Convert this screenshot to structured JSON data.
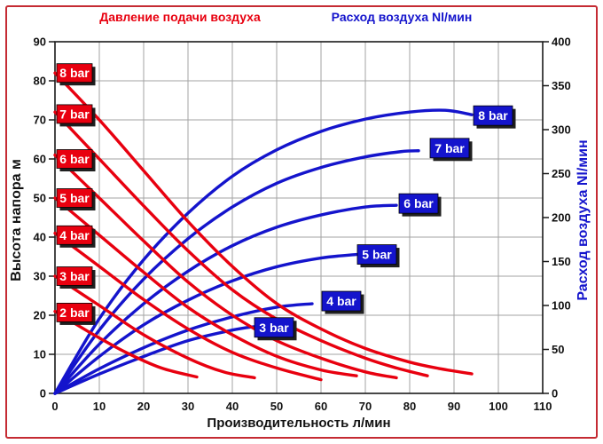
{
  "window": {
    "background": "#ffffff",
    "border_color": "#c52b33"
  },
  "chart_data": {
    "type": "line",
    "legend_top": {
      "left_label": "Давление подачи воздуха",
      "right_label": "Расход воздуха Nl/мин"
    },
    "xlabel": "Производительность л/мин",
    "ylabel_left": "Высота напора м",
    "ylabel_right": "Расход воздуха Nl/мин",
    "xlim": [
      0,
      110
    ],
    "ylim_left": [
      0,
      90
    ],
    "ylim_right": [
      0,
      400
    ],
    "x_ticks": [
      0,
      10,
      20,
      30,
      40,
      50,
      60,
      70,
      80,
      90,
      100,
      110
    ],
    "y_ticks_left": [
      0,
      10,
      20,
      30,
      40,
      50,
      60,
      70,
      80,
      90
    ],
    "y_ticks_right": [
      0,
      50,
      100,
      150,
      200,
      250,
      300,
      350,
      400
    ],
    "grid": {
      "vertical_every": 10,
      "horizontal_every_left": 10,
      "color": "#a3a3a3"
    },
    "colors": {
      "red": "#e8000f",
      "blue": "#1414cc",
      "axis": "#1a1a1a",
      "tick_text": "#111111",
      "label_text": "#ffffff",
      "shadow": "#1f1f1f"
    },
    "series": [
      {
        "id": "red-8bar",
        "label": "8 bar",
        "group": "pressure",
        "color": "red",
        "axis": "left",
        "label_pos": {
          "side": "start",
          "y": 82
        },
        "points": [
          [
            0,
            82
          ],
          [
            10,
            70
          ],
          [
            20,
            57
          ],
          [
            30,
            44
          ],
          [
            40,
            32.5
          ],
          [
            50,
            23
          ],
          [
            60,
            16.5
          ],
          [
            70,
            11.5
          ],
          [
            80,
            8
          ],
          [
            87,
            6.3
          ],
          [
            94,
            5
          ]
        ]
      },
      {
        "id": "red-7bar",
        "label": "7 bar",
        "group": "pressure",
        "color": "red",
        "axis": "left",
        "label_pos": {
          "side": "start",
          "y": 71.5
        },
        "points": [
          [
            0,
            72
          ],
          [
            10,
            60
          ],
          [
            20,
            48
          ],
          [
            30,
            36.5
          ],
          [
            40,
            26.5
          ],
          [
            50,
            19
          ],
          [
            60,
            13.5
          ],
          [
            70,
            9
          ],
          [
            77,
            6.5
          ],
          [
            84,
            4.5
          ]
        ]
      },
      {
        "id": "red-6bar",
        "label": "6 bar",
        "group": "pressure",
        "color": "red",
        "axis": "left",
        "label_pos": {
          "side": "start",
          "y": 60
        },
        "points": [
          [
            0,
            61
          ],
          [
            10,
            50
          ],
          [
            20,
            39
          ],
          [
            30,
            28.5
          ],
          [
            40,
            20
          ],
          [
            50,
            13.5
          ],
          [
            60,
            9
          ],
          [
            70,
            5.5
          ],
          [
            77,
            4
          ]
        ]
      },
      {
        "id": "red-5bar",
        "label": "5 bar",
        "group": "pressure",
        "color": "red",
        "axis": "left",
        "label_pos": {
          "side": "start",
          "y": 50
        },
        "points": [
          [
            0,
            50
          ],
          [
            10,
            40.5
          ],
          [
            20,
            31
          ],
          [
            30,
            22
          ],
          [
            40,
            15
          ],
          [
            50,
            9.5
          ],
          [
            60,
            6
          ],
          [
            68,
            4.5
          ]
        ]
      },
      {
        "id": "red-4bar",
        "label": "4 bar",
        "group": "pressure",
        "color": "red",
        "axis": "left",
        "label_pos": {
          "side": "start",
          "y": 40.5
        },
        "points": [
          [
            0,
            41
          ],
          [
            10,
            32.5
          ],
          [
            20,
            24
          ],
          [
            30,
            16.5
          ],
          [
            40,
            10.5
          ],
          [
            50,
            6.5
          ],
          [
            60,
            3.5
          ]
        ]
      },
      {
        "id": "red-3bar",
        "label": "3 bar",
        "group": "pressure",
        "color": "red",
        "axis": "left",
        "label_pos": {
          "side": "start",
          "y": 30
        },
        "points": [
          [
            0,
            30
          ],
          [
            10,
            22.5
          ],
          [
            20,
            15
          ],
          [
            30,
            9
          ],
          [
            38,
            5.5
          ],
          [
            45,
            4
          ]
        ]
      },
      {
        "id": "red-2bar",
        "label": "2 bar",
        "group": "pressure",
        "color": "red",
        "axis": "left",
        "label_pos": {
          "side": "start",
          "y": 20.7
        },
        "points": [
          [
            0,
            21
          ],
          [
            8,
            15.5
          ],
          [
            16,
            10.5
          ],
          [
            24,
            6.5
          ],
          [
            32,
            4.2
          ]
        ]
      },
      {
        "id": "blue-8bar",
        "label": "8 bar",
        "group": "air-flow",
        "color": "blue",
        "axis": "right",
        "label_pos": {
          "side": "end",
          "x": 98.8,
          "y": 316
        },
        "points": [
          [
            0,
            0
          ],
          [
            10,
            85
          ],
          [
            20,
            152
          ],
          [
            30,
            205
          ],
          [
            40,
            247
          ],
          [
            50,
            277
          ],
          [
            60,
            298
          ],
          [
            70,
            312
          ],
          [
            80,
            320
          ],
          [
            88,
            322
          ],
          [
            94,
            317
          ]
        ]
      },
      {
        "id": "blue-7bar",
        "label": "7 bar",
        "group": "air-flow",
        "color": "blue",
        "axis": "right",
        "label_pos": {
          "side": "end",
          "x": 89,
          "y": 279
        },
        "points": [
          [
            0,
            0
          ],
          [
            10,
            72
          ],
          [
            20,
            130
          ],
          [
            30,
            176
          ],
          [
            40,
            212
          ],
          [
            50,
            239
          ],
          [
            60,
            257
          ],
          [
            70,
            269
          ],
          [
            78,
            275
          ],
          [
            82,
            276
          ]
        ]
      },
      {
        "id": "blue-6bar",
        "label": "6 bar",
        "group": "air-flow",
        "color": "blue",
        "axis": "right",
        "label_pos": {
          "side": "end",
          "x": 82,
          "y": 216
        },
        "points": [
          [
            0,
            0
          ],
          [
            10,
            56
          ],
          [
            20,
            102
          ],
          [
            30,
            139
          ],
          [
            40,
            168
          ],
          [
            50,
            189
          ],
          [
            60,
            203
          ],
          [
            70,
            212
          ],
          [
            77,
            214
          ]
        ]
      },
      {
        "id": "blue-5bar",
        "label": "5 bar",
        "group": "air-flow",
        "color": "blue",
        "axis": "right",
        "label_pos": {
          "side": "end",
          "x": 72.6,
          "y": 158
        },
        "points": [
          [
            0,
            0
          ],
          [
            10,
            42
          ],
          [
            20,
            78
          ],
          [
            30,
            106
          ],
          [
            40,
            128
          ],
          [
            50,
            144
          ],
          [
            60,
            154
          ],
          [
            68,
            158
          ]
        ]
      },
      {
        "id": "blue-4bar",
        "label": "4 bar",
        "group": "air-flow",
        "color": "blue",
        "axis": "right",
        "label_pos": {
          "side": "end",
          "x": 64.6,
          "y": 105
        },
        "points": [
          [
            0,
            0
          ],
          [
            10,
            28
          ],
          [
            20,
            52
          ],
          [
            30,
            72
          ],
          [
            40,
            87
          ],
          [
            50,
            98
          ],
          [
            58,
            102
          ]
        ]
      },
      {
        "id": "blue-3bar",
        "label": "3 bar",
        "group": "air-flow",
        "color": "blue",
        "axis": "right",
        "label_pos": {
          "side": "end",
          "x": 49.4,
          "y": 75
        },
        "points": [
          [
            0,
            0
          ],
          [
            10,
            22
          ],
          [
            20,
            42
          ],
          [
            30,
            60
          ],
          [
            40,
            72
          ],
          [
            45,
            76
          ]
        ]
      }
    ]
  }
}
